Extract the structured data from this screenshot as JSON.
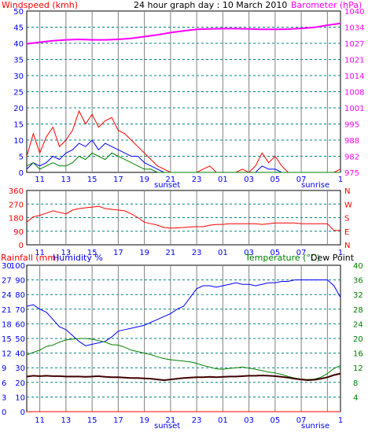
{
  "chart_data": [
    {
      "type": "line",
      "title": "24 hour graph day : 10 March 2010",
      "left_axis_label": "Windspeed (kmh)",
      "right_axis_label": "Barometer (hPa)",
      "left_ticks": [
        "0",
        "5",
        "10",
        "15",
        "20",
        "25",
        "30",
        "35",
        "40",
        "45",
        "50"
      ],
      "right_ticks": [
        "975",
        "982",
        "988",
        "995",
        "1001",
        "1008",
        "1014",
        "1021",
        "1027",
        "1034",
        "1040"
      ],
      "x_ticks": [
        "11",
        "13",
        "15",
        "17",
        "19",
        "21",
        "23",
        "01",
        "03",
        "05",
        "07",
        "1"
      ],
      "x_markers": [
        "sunset",
        "sunrise"
      ],
      "grid": true,
      "colors": {
        "windspeed": "#ff0000",
        "average": "#0000ff",
        "gust": "#008000",
        "barometer": "#ff00ff"
      },
      "series": [
        {
          "name": "Barometer",
          "axis": "right",
          "x": [
            0,
            4,
            6,
            8,
            10,
            12,
            14,
            16,
            18,
            20,
            22,
            24,
            26,
            28,
            30,
            32,
            34,
            36,
            38,
            40,
            42,
            44,
            46,
            48
          ],
          "values": [
            1026.8,
            1028.0,
            1028.4,
            1028.6,
            1028.4,
            1028.4,
            1028.6,
            1029.0,
            1029.7,
            1030.4,
            1031.3,
            1032.0,
            1032.6,
            1032.8,
            1032.9,
            1032.9,
            1032.8,
            1032.6,
            1032.6,
            1032.7,
            1033.0,
            1033.4,
            1034.3,
            1035.0
          ]
        },
        {
          "name": "Windspeed",
          "axis": "left",
          "x": [
            0,
            1,
            2,
            3,
            4,
            5,
            6,
            7,
            8,
            9,
            10,
            11,
            12,
            13,
            14,
            15,
            16,
            17,
            18,
            19,
            20,
            21,
            22,
            23,
            24,
            25,
            26,
            27,
            28,
            29,
            30,
            31,
            32,
            33,
            34,
            35,
            36,
            37,
            38,
            39,
            40,
            41,
            42,
            43,
            44,
            45,
            46,
            47,
            48
          ],
          "values": [
            5,
            12,
            6,
            11,
            14,
            8,
            10,
            13,
            19,
            15,
            18,
            14,
            16,
            17,
            13,
            12,
            10,
            8,
            6,
            4,
            2,
            1,
            0,
            0,
            0,
            0,
            0,
            1,
            2,
            0,
            0,
            0,
            0,
            1,
            0,
            2,
            6,
            3,
            5,
            2,
            0,
            0,
            0,
            0,
            0,
            0,
            0,
            0,
            1
          ]
        },
        {
          "name": "Average",
          "axis": "left",
          "x": [
            0,
            1,
            2,
            3,
            4,
            5,
            6,
            7,
            8,
            9,
            10,
            11,
            12,
            13,
            14,
            15,
            16,
            17,
            18,
            19,
            20,
            21,
            22,
            23,
            24,
            25,
            26,
            27,
            28,
            29,
            30,
            31,
            32,
            33,
            34,
            35,
            36,
            37,
            38,
            39,
            40,
            41,
            42,
            43,
            44,
            45,
            46,
            47,
            48
          ],
          "values": [
            1,
            3,
            2,
            3,
            5,
            4,
            6,
            7,
            9,
            8,
            10,
            7,
            9,
            8,
            7,
            6,
            5,
            5,
            3,
            2,
            1,
            0,
            0,
            0,
            0,
            0,
            0,
            0,
            0,
            0,
            0,
            0,
            0,
            0,
            0,
            0,
            2,
            1,
            1,
            0,
            0,
            0,
            0,
            0,
            0,
            0,
            0,
            0,
            0
          ]
        },
        {
          "name": "Gust",
          "axis": "left",
          "x": [
            0,
            1,
            2,
            3,
            4,
            5,
            6,
            7,
            8,
            9,
            10,
            11,
            12,
            13,
            14,
            15,
            16,
            17,
            18,
            19,
            20,
            21,
            22,
            23,
            24,
            25,
            26,
            27,
            28,
            29,
            30,
            31,
            32,
            33,
            34,
            35,
            36,
            37,
            38,
            39,
            40,
            41,
            42,
            43,
            44,
            45,
            46,
            47,
            48
          ],
          "values": [
            2,
            3,
            1,
            2,
            3,
            2,
            2,
            3,
            5,
            4,
            6,
            5,
            4,
            6,
            5,
            4,
            3,
            2,
            1,
            1,
            0,
            0,
            0,
            0,
            0,
            0,
            0,
            0,
            0,
            0,
            0,
            0,
            0,
            0,
            0,
            0,
            0,
            0,
            0,
            0,
            0,
            0,
            0,
            0,
            0,
            0,
            0,
            0,
            0
          ]
        }
      ]
    },
    {
      "type": "line",
      "left_ticks": [
        "0",
        "90",
        "180",
        "270",
        "360"
      ],
      "right_ticks": [
        "N",
        "E",
        "S",
        "W",
        "N"
      ],
      "x_ticks": [
        "11",
        "13",
        "15",
        "17",
        "19",
        "21",
        "23",
        "01",
        "03",
        "05",
        "07",
        "1"
      ],
      "grid": true,
      "series": [
        {
          "name": "Wind direction",
          "x": [
            0,
            1,
            2,
            3,
            4,
            5,
            6,
            7,
            8,
            9,
            10,
            11,
            12,
            13,
            14,
            15,
            16,
            17,
            18,
            19,
            20,
            21,
            22,
            23,
            24,
            25,
            26,
            27,
            28,
            29,
            30,
            31,
            32,
            33,
            34,
            35,
            36,
            37,
            38,
            39,
            40,
            41,
            42,
            43,
            44,
            45,
            46,
            47,
            48
          ],
          "values": [
            150,
            185,
            195,
            210,
            225,
            215,
            205,
            230,
            240,
            245,
            250,
            255,
            240,
            235,
            230,
            225,
            205,
            180,
            150,
            140,
            130,
            115,
            110,
            112,
            115,
            118,
            120,
            120,
            130,
            135,
            135,
            140,
            140,
            140,
            140,
            140,
            135,
            140,
            145,
            145,
            145,
            145,
            140,
            140,
            140,
            140,
            140,
            95,
            95
          ]
        }
      ]
    },
    {
      "type": "line",
      "left_axis_label": "Rainfall (mm)",
      "left_axis_label2": "Humidity %",
      "right_axis_label": "Temperature (°C)",
      "right_axis_label2": "Dew Point",
      "rain_ticks": [
        "0",
        "3",
        "6",
        "9",
        "12",
        "15",
        "18",
        "21",
        "24",
        "27",
        "30"
      ],
      "humidity_ticks": [
        "0",
        "10",
        "20",
        "30",
        "40",
        "50",
        "60",
        "70",
        "80",
        "90",
        "100"
      ],
      "right_ticks": [
        "4",
        "8",
        "12",
        "16",
        "20",
        "24",
        "28",
        "32",
        "36",
        "40"
      ],
      "x_ticks": [
        "11",
        "13",
        "15",
        "17",
        "19",
        "21",
        "23",
        "01",
        "03",
        "05",
        "07",
        "1"
      ],
      "x_markers": [
        "sunset",
        "sunrise"
      ],
      "grid": true,
      "series": [
        {
          "name": "Humidity",
          "axis": "humidity",
          "x": [
            0,
            1,
            2,
            3,
            4,
            5,
            6,
            7,
            8,
            9,
            10,
            11,
            12,
            13,
            14,
            15,
            16,
            17,
            18,
            19,
            20,
            21,
            22,
            23,
            24,
            25,
            26,
            27,
            28,
            29,
            30,
            31,
            32,
            33,
            34,
            35,
            36,
            37,
            38,
            39,
            40,
            41,
            42,
            43,
            44,
            45,
            46,
            47,
            48
          ],
          "values": [
            72,
            73,
            70,
            68,
            63,
            58,
            56,
            52,
            48,
            45,
            46,
            47,
            48,
            51,
            55,
            56,
            57,
            58,
            59,
            61,
            63,
            65,
            67,
            70,
            72,
            78,
            84,
            86,
            86,
            85,
            86,
            87,
            88,
            87,
            87,
            86,
            87,
            88,
            88,
            89,
            89,
            90,
            90,
            90,
            90,
            90,
            90,
            86,
            78
          ]
        },
        {
          "name": "Temperature",
          "axis": "right",
          "x": [
            0,
            1,
            2,
            3,
            4,
            5,
            6,
            7,
            8,
            9,
            10,
            11,
            12,
            13,
            14,
            15,
            16,
            17,
            18,
            19,
            20,
            21,
            22,
            23,
            24,
            25,
            26,
            27,
            28,
            29,
            30,
            31,
            32,
            33,
            34,
            35,
            36,
            37,
            38,
            39,
            40,
            41,
            42,
            43,
            44,
            45,
            46,
            47,
            48
          ],
          "values": [
            15.5,
            16.2,
            16.8,
            17.8,
            18.2,
            19.0,
            19.6,
            19.8,
            20.0,
            20.0,
            19.8,
            19.4,
            19.0,
            18.3,
            18.2,
            17.6,
            16.8,
            16.4,
            16.0,
            15.6,
            15.0,
            14.5,
            14.2,
            14.0,
            13.8,
            13.6,
            13.2,
            12.6,
            12.2,
            11.7,
            11.6,
            11.8,
            12.0,
            12.2,
            11.9,
            11.6,
            11.2,
            10.8,
            10.6,
            10.2,
            9.6,
            9.2,
            8.9,
            8.8,
            8.9,
            9.4,
            10.4,
            11.8,
            12.6
          ]
        },
        {
          "name": "Dew Point",
          "axis": "right",
          "x": [
            0,
            1,
            2,
            3,
            4,
            5,
            6,
            7,
            8,
            9,
            10,
            11,
            12,
            13,
            14,
            15,
            16,
            17,
            18,
            19,
            20,
            21,
            22,
            23,
            24,
            25,
            26,
            27,
            28,
            29,
            30,
            31,
            32,
            33,
            34,
            35,
            36,
            37,
            38,
            39,
            40,
            41,
            42,
            43,
            44,
            45,
            46,
            47,
            48
          ],
          "values": [
            9.6,
            9.8,
            9.7,
            9.8,
            9.7,
            9.7,
            9.6,
            9.6,
            9.6,
            9.5,
            9.6,
            9.7,
            9.5,
            9.4,
            9.4,
            9.3,
            9.2,
            9.2,
            9.1,
            9.0,
            8.8,
            8.6,
            8.8,
            9.0,
            9.2,
            9.3,
            9.4,
            9.4,
            9.5,
            9.4,
            9.5,
            9.6,
            9.6,
            9.7,
            9.8,
            9.8,
            9.9,
            9.8,
            9.7,
            9.5,
            9.3,
            9.0,
            8.8,
            8.6,
            8.7,
            9.0,
            9.4,
            10.0,
            10.4
          ]
        },
        {
          "name": "Rainfall",
          "axis": "rain",
          "x": [
            0,
            48
          ],
          "values": [
            0,
            0
          ]
        }
      ]
    }
  ],
  "colors": {
    "axis_text": "#0000ff",
    "grid_h": "#008080",
    "grid_v": "#808080",
    "frame": "#000000"
  }
}
